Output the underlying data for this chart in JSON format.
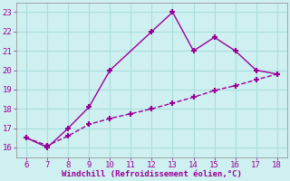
{
  "xlabel": "Windchill (Refroidissement éolien,°C)",
  "xlim": [
    5.5,
    18.5
  ],
  "ylim": [
    15.5,
    23.5
  ],
  "xticks": [
    6,
    7,
    8,
    9,
    10,
    11,
    12,
    13,
    14,
    15,
    16,
    17,
    18
  ],
  "yticks": [
    16,
    17,
    18,
    19,
    20,
    21,
    22,
    23
  ],
  "line1_x": [
    6,
    7,
    8,
    9,
    10,
    12,
    13,
    14,
    15,
    16,
    17,
    18
  ],
  "line1_y": [
    16.5,
    16.0,
    17.0,
    18.1,
    20.0,
    22.0,
    23.0,
    21.0,
    21.7,
    21.0,
    20.0,
    19.8
  ],
  "line2_x": [
    6,
    7,
    8,
    9,
    10,
    11,
    12,
    13,
    14,
    15,
    16,
    17,
    18
  ],
  "line2_y": [
    16.5,
    16.1,
    16.6,
    17.2,
    17.5,
    17.75,
    18.0,
    18.3,
    18.6,
    18.95,
    19.2,
    19.5,
    19.8
  ],
  "line_color": "#990099",
  "bg_color": "#cff0f0",
  "grid_color": "#aadddd",
  "tick_label_color": "#990099",
  "xlabel_color": "#990099",
  "marker": "+",
  "markersize": 4,
  "markeredgewidth": 1.5,
  "linewidth": 1.0,
  "tick_fontsize": 6.5,
  "xlabel_fontsize": 6.5
}
